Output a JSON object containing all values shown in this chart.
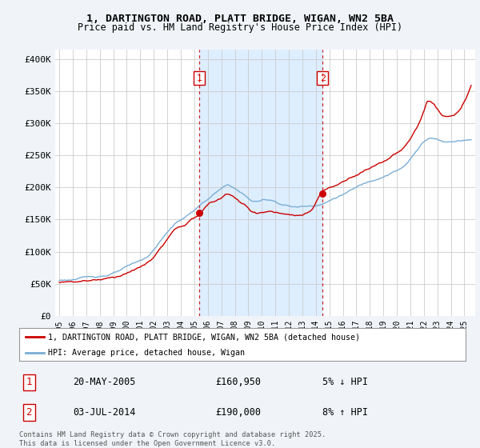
{
  "title_line1": "1, DARTINGTON ROAD, PLATT BRIDGE, WIGAN, WN2 5BA",
  "title_line2": "Price paid vs. HM Land Registry's House Price Index (HPI)",
  "yticks": [
    0,
    50000,
    100000,
    150000,
    200000,
    250000,
    300000,
    350000,
    400000
  ],
  "ytick_labels": [
    "£0",
    "£50K",
    "£100K",
    "£150K",
    "£200K",
    "£250K",
    "£300K",
    "£350K",
    "£400K"
  ],
  "ylim": [
    0,
    415000
  ],
  "sale1": {
    "date_label": "20-MAY-2005",
    "price": 160950,
    "pct": "5%",
    "direction": "↓",
    "marker_year": 2005.38
  },
  "sale2": {
    "date_label": "03-JUL-2014",
    "price": 190000,
    "pct": "8%",
    "direction": "↑",
    "marker_year": 2014.5
  },
  "hpi_color": "#7aaed6",
  "sold_color": "#cc0000",
  "shade_color": "#ddeeff",
  "legend_label_sold": "1, DARTINGTON ROAD, PLATT BRIDGE, WIGAN, WN2 5BA (detached house)",
  "legend_label_hpi": "HPI: Average price, detached house, Wigan",
  "footnote": "Contains HM Land Registry data © Crown copyright and database right 2025.\nThis data is licensed under the Open Government Licence v3.0.",
  "background_color": "#f0f4f8",
  "plot_bg_color": "#ffffff",
  "grid_color": "#cccccc",
  "vline_color": "#cc0000",
  "marker1_label": "1",
  "marker2_label": "2",
  "marker1_price": 160950,
  "marker2_price": 190000,
  "xlim_left": 1994.7,
  "xlim_right": 2025.8
}
